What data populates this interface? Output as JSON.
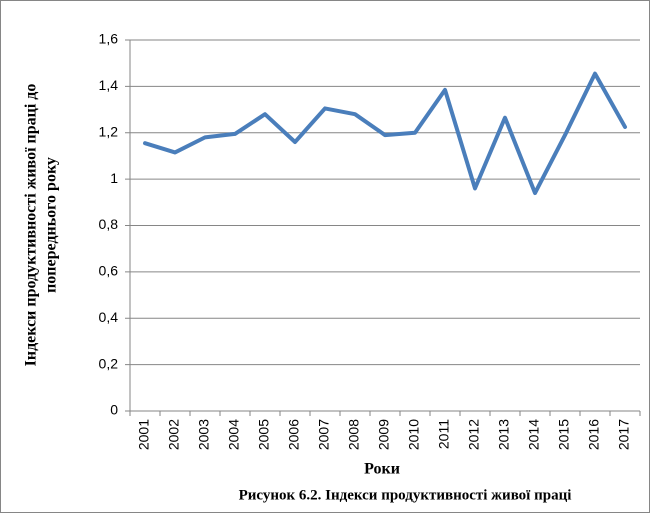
{
  "chart_data": {
    "type": "line",
    "caption": "Рисунок 6.2. Індекси продуктивності живої праці",
    "x_label": "Роки",
    "y_label": [
      "Індекси продуктивності живої праці до",
      "попереднього року"
    ],
    "categories": [
      "2001",
      "2002",
      "2003",
      "2004",
      "2005",
      "2006",
      "2007",
      "2008",
      "2009",
      "2010",
      "2011",
      "2012",
      "2013",
      "2014",
      "2015",
      "2016",
      "2017"
    ],
    "series": [
      {
        "name": "Індекси продуктивності живої праці",
        "color": "#4a7ebb",
        "values": [
          1.155,
          1.115,
          1.18,
          1.195,
          1.28,
          1.16,
          1.305,
          1.28,
          1.19,
          1.2,
          1.385,
          0.96,
          1.265,
          0.94,
          1.19,
          1.455,
          1.225
        ]
      }
    ],
    "ylim": [
      0,
      1.6
    ],
    "yticks": [
      0,
      {
        "value": 0.2,
        "label": "0,2"
      },
      {
        "value": 0.4,
        "label": "0,4"
      },
      {
        "value": 0.6,
        "label": "0,6"
      },
      {
        "value": 0.8,
        "label": "0,8"
      },
      1,
      {
        "value": 1.2,
        "label": "1,2"
      },
      {
        "value": 1.4,
        "label": "1,4"
      },
      {
        "value": 1.6,
        "label": "1,6"
      }
    ],
    "grid": true
  }
}
